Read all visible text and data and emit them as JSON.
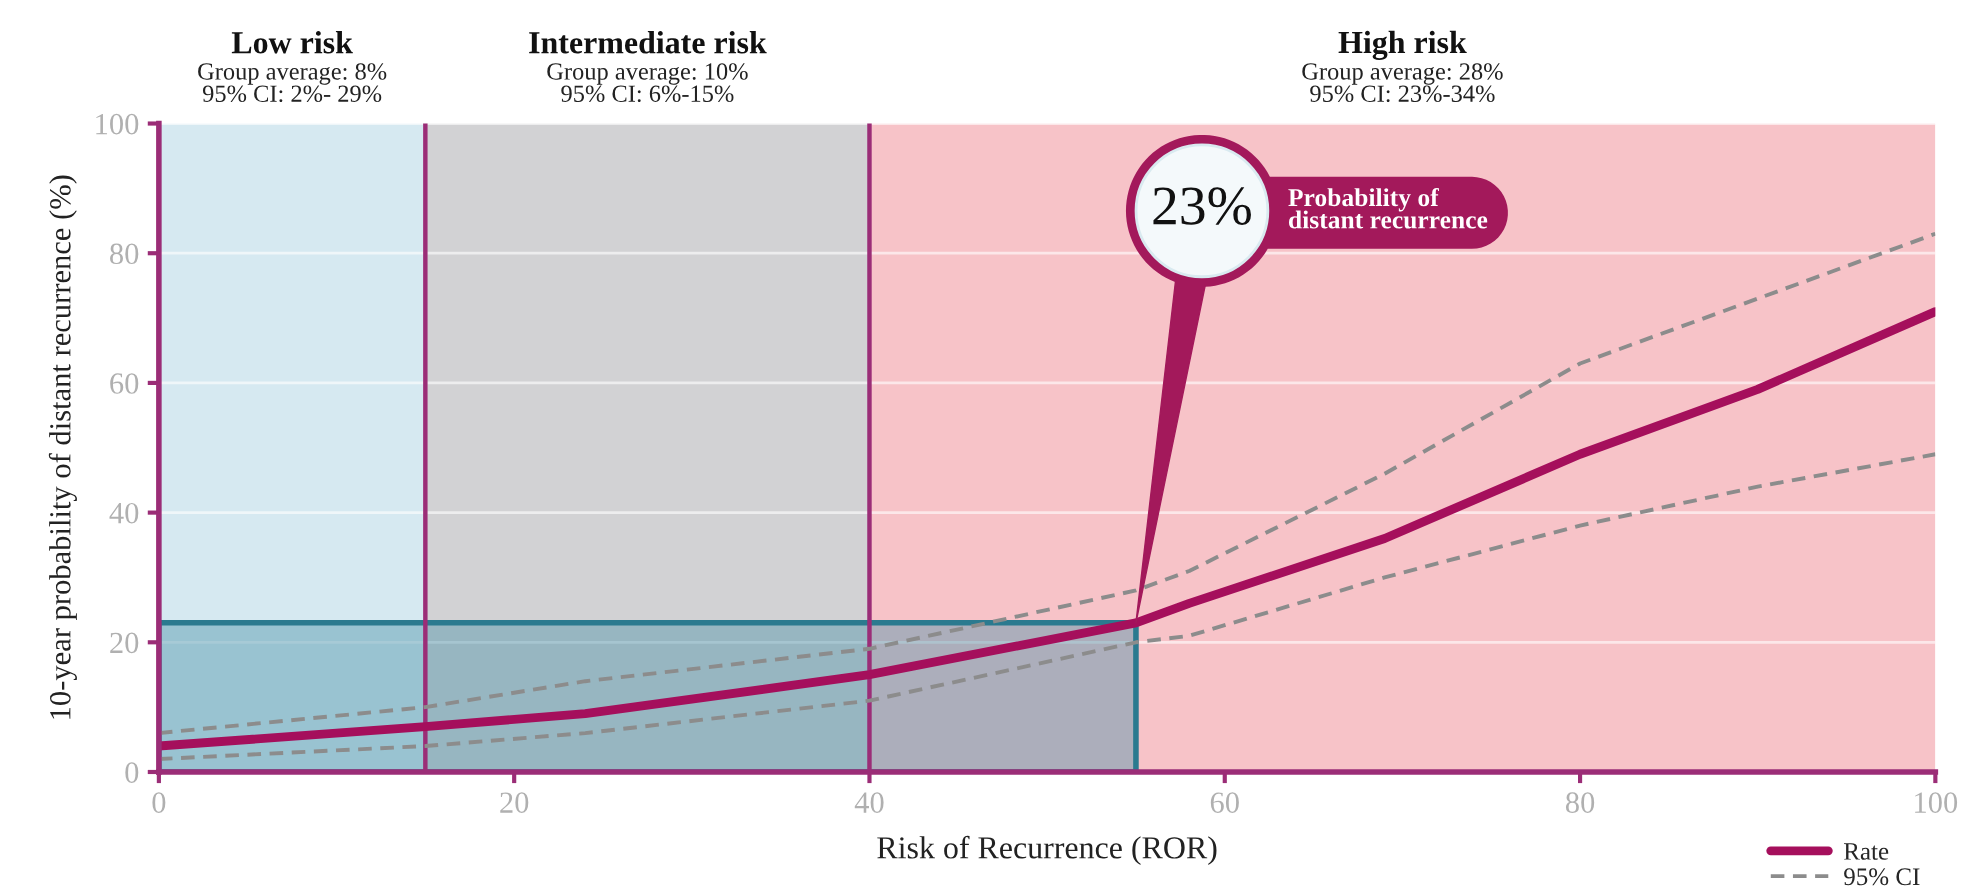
{
  "chart_data": {
    "type": "line",
    "xlabel": "Risk of Recurrence (ROR)",
    "ylabel": "10-year probability of distant recurrence (%)",
    "x": [
      0,
      15,
      24,
      40,
      55,
      58,
      69,
      80,
      90,
      100
    ],
    "series": [
      {
        "name": "Rate",
        "color": "#a50f5c",
        "line_style": "solid",
        "values": [
          4,
          7,
          9,
          15,
          23,
          26,
          36,
          49,
          59,
          71
        ]
      },
      {
        "name": "95% CI",
        "color": "#8c8c8c",
        "line_style": "dashed",
        "values": [
          6,
          10,
          14,
          19,
          28,
          31,
          46,
          63,
          73,
          83
        ]
      },
      {
        "color": "#8c8c8c",
        "line_style": "dashed",
        "values": [
          2,
          4,
          6,
          11,
          20,
          21,
          30,
          38,
          44,
          49
        ]
      }
    ],
    "xlim": [
      0,
      100
    ],
    "xticks": [
      0,
      20,
      40,
      60,
      80,
      100
    ],
    "ylim": [
      0,
      100
    ],
    "yticks": [
      0,
      20,
      40,
      60,
      80,
      100
    ],
    "bands": [
      {
        "axis": "x",
        "from": 0,
        "to": 15,
        "label": "Low risk\nGroup average: 8%\n95% CI: 2%- 29%",
        "color": "#d6e9f1"
      },
      {
        "axis": "x",
        "from": 15,
        "to": 40,
        "label": "Intermediate risk\nGroup average: 10%\n95% CI: 6%-15%",
        "color": "#d2d2d4"
      },
      {
        "axis": "x",
        "from": 40,
        "to": 100,
        "label": "High risk\nGroup average: 28%\n95% CI: 23%-34%",
        "color": "#f7c3c8"
      }
    ],
    "ref_lines": [
      {
        "axis": "x",
        "value": 15,
        "color": "#9b2d77"
      },
      {
        "axis": "x",
        "value": 40,
        "color": "#9b2d77"
      }
    ],
    "annotations": [
      {
        "text": "23%",
        "x": 55,
        "y": 23
      },
      "Probability of\ndistant recurrence"
    ],
    "grid": "y",
    "legend": "bottom right"
  }
}
